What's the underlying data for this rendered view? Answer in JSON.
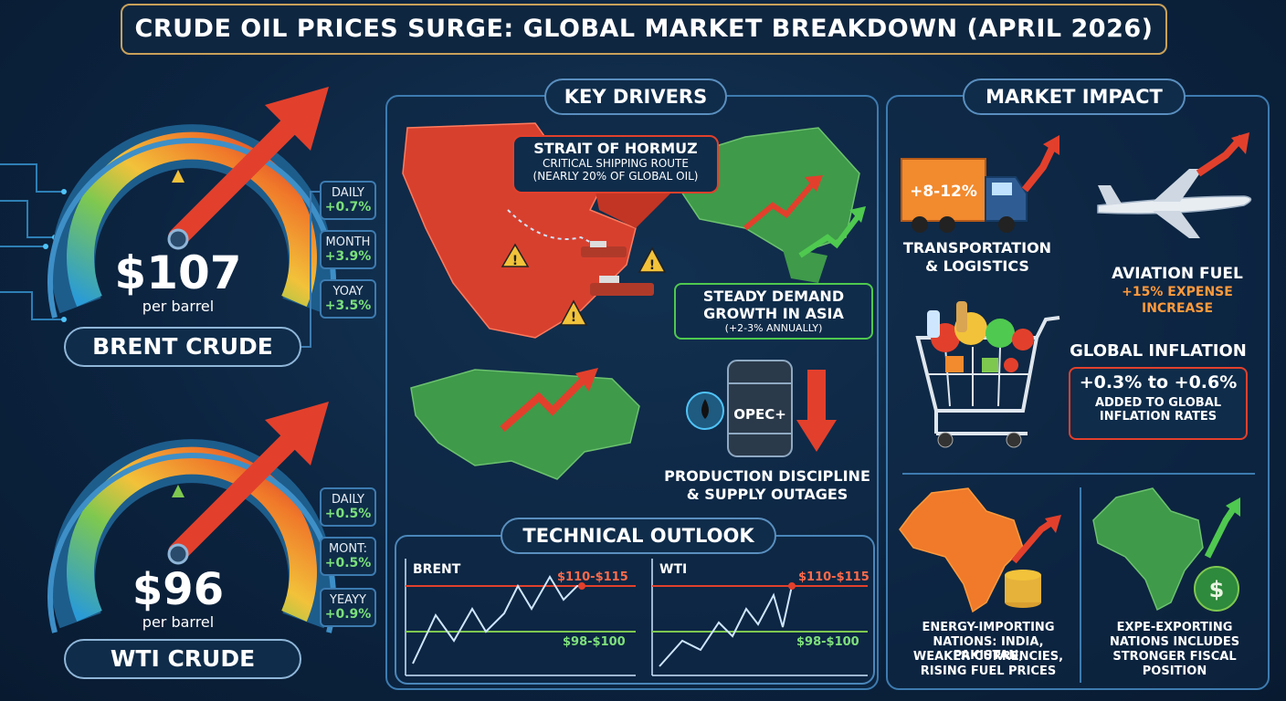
{
  "title": "CRUDE OIL PRICES SURGE: GLOBAL MARKET BREAKDOWN (APRIL 2026)",
  "brent": {
    "price": "$107",
    "unit": "per barrel",
    "name": "BRENT CRUDE",
    "stats": [
      {
        "label": "DAILY",
        "value": "+0.7%"
      },
      {
        "label": "MONTH",
        "value": "+3.9%"
      },
      {
        "label": "YOAY",
        "value": "+3.5%"
      }
    ]
  },
  "wti": {
    "price": "$96",
    "unit": "per barrel",
    "name": "WTI CRUDE",
    "stats": [
      {
        "label": "DAILY",
        "value": "+0.5%"
      },
      {
        "label": "MONT:",
        "value": "+0.5%"
      },
      {
        "label": "YEAYY",
        "value": "+0.9%"
      }
    ]
  },
  "key_drivers": {
    "heading": "KEY DRIVERS",
    "hormuz": {
      "title": "STRAIT OF HORMUZ",
      "line1": "CRITICAL SHIPPING ROUTE",
      "line2": "(NEARLY 20% OF GLOBAL OIL)"
    },
    "asia": {
      "line1": "STEADY DEMAND",
      "line2": "GROWTH IN ASIA",
      "line3": "(+2-3% ANNUALLY)"
    },
    "opec": {
      "barrel": "OPEC+",
      "line1": "PRODUCTION DISCIPLINE",
      "line2": "& SUPPLY OUTAGES"
    }
  },
  "technical": {
    "heading": "TECHNICAL OUTLOOK",
    "brent": {
      "label": "BRENT",
      "resistance": "$110-$115",
      "support": "$98-$100"
    },
    "wti": {
      "label": "WTI",
      "resistance": "$110-$115",
      "support": "$98-$100"
    }
  },
  "market_impact": {
    "heading": "MARKET IMPACT",
    "truck_badge": "+8-12%",
    "transport": {
      "line1": "TRANSPORTATION",
      "line2": "& LOGISTICS"
    },
    "aviation": {
      "title": "AVIATION FUEL",
      "line1": "+15% EXPENSE",
      "line2": "INCREASE"
    },
    "inflation": {
      "title": "GLOBAL INFLATION",
      "range": "+0.3% to +0.6%",
      "line1": "ADDED TO GLOBAL",
      "line2": "INFLATION RATES"
    },
    "importers": {
      "line1": "ENERGY-IMPORTING",
      "line2": "NATIONS: INDIA, PAKISTAN,",
      "line3": "WEAKER CURRENCIES,",
      "line4": "RISING FUEL PRICES"
    },
    "exporters": {
      "line1": "EXPE-EXPORTING",
      "line2": "NATIONS INCLUDES",
      "line3": "STRONGER FISCAL",
      "line4": "POSITION"
    }
  },
  "colors": {
    "accent_green": "#7be07b",
    "accent_red": "#e2402c",
    "panel_border": "#3d7bb0",
    "highlight_orange": "#ff9a3c"
  }
}
